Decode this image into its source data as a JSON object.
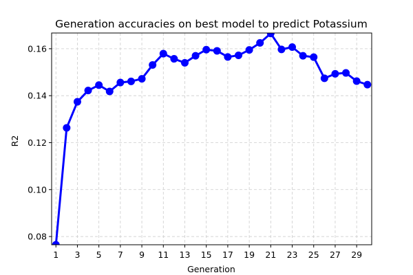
{
  "chart_data": {
    "type": "line",
    "title": "Generation accuracies on best model to predict Potassium",
    "xlabel": "Generation",
    "ylabel": "R2",
    "x": [
      1,
      2,
      3,
      4,
      5,
      6,
      7,
      8,
      9,
      10,
      11,
      12,
      13,
      14,
      15,
      16,
      17,
      18,
      19,
      20,
      21,
      22,
      23,
      24,
      25,
      26,
      27,
      28,
      29,
      30
    ],
    "series": [
      {
        "values": [
          0.0765,
          0.1263,
          0.1374,
          0.1422,
          0.1445,
          0.1418,
          0.1456,
          0.1461,
          0.1472,
          0.1531,
          0.1579,
          0.1557,
          0.154,
          0.157,
          0.1596,
          0.1591,
          0.1565,
          0.1572,
          0.1595,
          0.1625,
          0.1665,
          0.1597,
          0.1607,
          0.157,
          0.1564,
          0.1474,
          0.1493,
          0.1497,
          0.1462,
          0.1447
        ],
        "color": "#0000ff"
      }
    ],
    "xticks": [
      1,
      3,
      5,
      7,
      9,
      11,
      13,
      15,
      17,
      19,
      21,
      23,
      25,
      27,
      29
    ],
    "yticks": [
      0.08,
      0.1,
      0.12,
      0.14,
      0.16
    ],
    "ytick_labels": [
      "0.08",
      "0.10",
      "0.12",
      "0.14",
      "0.16"
    ],
    "xlim": [
      0.6,
      30.4
    ],
    "ylim": [
      0.0765,
      0.1667
    ],
    "grid": true,
    "grid_color": "#cccccc",
    "markers": "circle"
  }
}
